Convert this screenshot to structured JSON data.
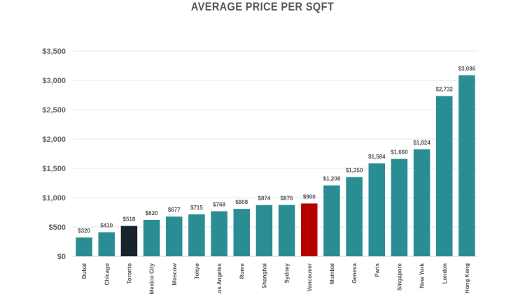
{
  "chart_data": {
    "type": "bar",
    "title": "AVERAGE PRICE PER SQFT",
    "xlabel": "",
    "ylabel": "",
    "ylim": [
      0,
      3500
    ],
    "yticks": [
      0,
      500,
      1000,
      1500,
      2000,
      2500,
      3000,
      3500
    ],
    "ytick_labels": [
      "$0",
      "$500",
      "$1,000",
      "$1,500",
      "$2,000",
      "$2,500",
      "$3,000",
      "$3,500"
    ],
    "grid": true,
    "legend": "none",
    "categories": [
      "Dubai",
      "Chicago",
      "Toronto",
      "Mexico City",
      "Moscow",
      "Tokyo",
      "Los Angeles",
      "Rome",
      "Shanghai",
      "Sydney",
      "Vancouver",
      "Mumbai",
      "Geneva",
      "Paris",
      "Singapore",
      "New York",
      "London",
      "Hong Kong"
    ],
    "values": [
      320,
      410,
      518,
      620,
      677,
      715,
      768,
      808,
      874,
      876,
      900,
      1208,
      1350,
      1584,
      1660,
      1824,
      2732,
      3086
    ],
    "value_labels": [
      "$320",
      "$410",
      "$518",
      "$620",
      "$677",
      "$715",
      "$768",
      "$808",
      "$874",
      "$876",
      "$900",
      "$1,208",
      "$1,350",
      "$1,584",
      "$1,660",
      "$1,824",
      "$2,732",
      "$3,086"
    ],
    "colors": {
      "default": "#2a8d94",
      "highlight_dark": "#17242d",
      "highlight_red": "#b50000"
    },
    "highlights": {
      "Toronto": "highlight_dark",
      "Vancouver": "highlight_red"
    }
  }
}
